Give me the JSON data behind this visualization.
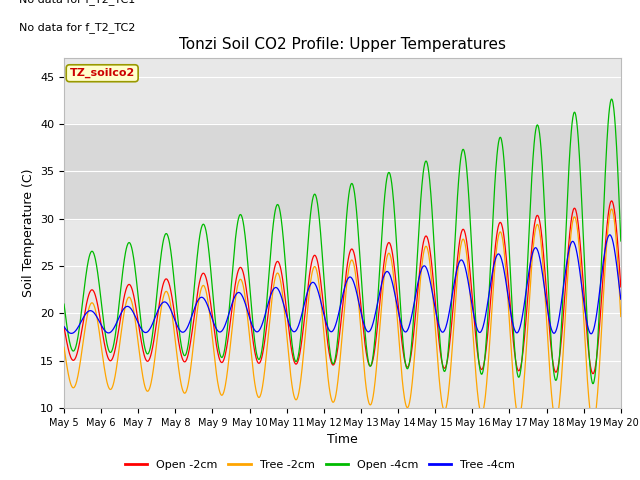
{
  "title": "Tonzi Soil CO2 Profile: Upper Temperatures",
  "ylabel": "Soil Temperature (C)",
  "xlabel": "Time",
  "top_text_1": "No data for f_T2_TC1",
  "top_text_2": "No data for f_T2_TC2",
  "legend_label": "TZ_soilco2",
  "series_labels": [
    "Open -2cm",
    "Tree -2cm",
    "Open -4cm",
    "Tree -4cm"
  ],
  "series_colors": [
    "#ff0000",
    "#ffa500",
    "#00bb00",
    "#0000ff"
  ],
  "ylim": [
    10,
    47
  ],
  "yticks": [
    10,
    15,
    20,
    25,
    30,
    35,
    40,
    45
  ],
  "shaded_band": [
    30,
    40
  ],
  "n_days": 15,
  "start_day": 5,
  "plot_bg_color": "#e8e8e8",
  "shaded_color": "#d8d8d8",
  "figsize": [
    6.4,
    4.8
  ],
  "dpi": 100
}
